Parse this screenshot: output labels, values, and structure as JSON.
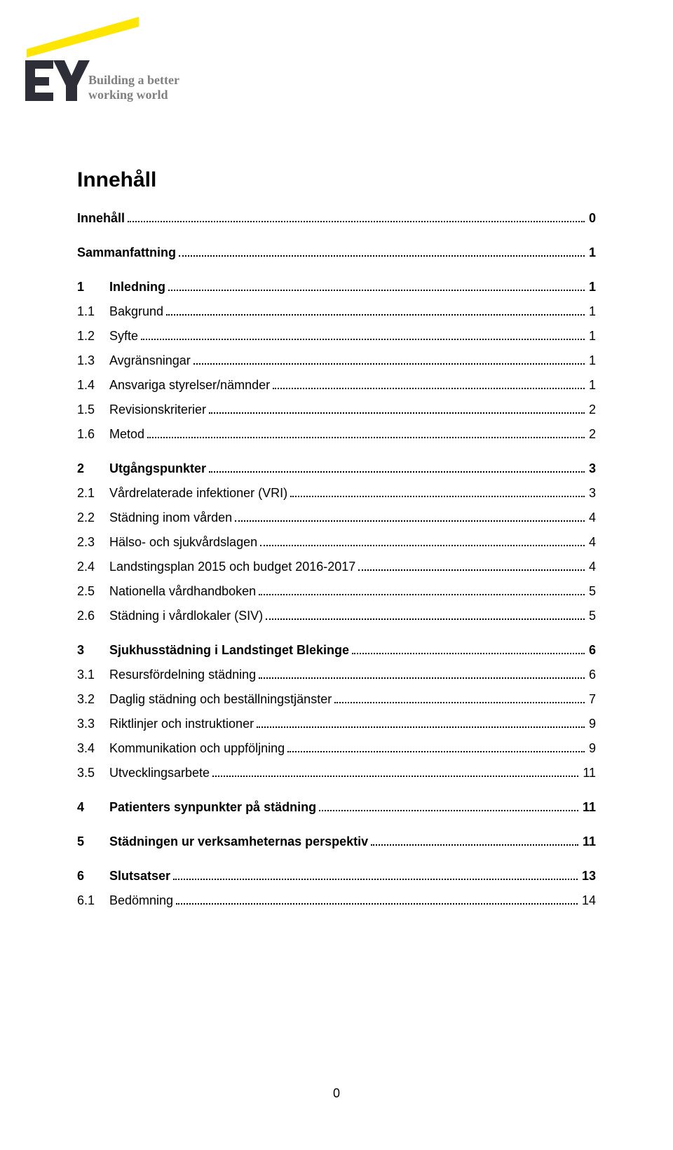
{
  "logo": {
    "brand": "EY",
    "tagline_line1": "Building a better",
    "tagline_line2": "working world",
    "yellow": "#ffe600",
    "dark": "#2e2e38",
    "gray": "#808080"
  },
  "title": "Innehåll",
  "footer_page": "0",
  "toc": [
    {
      "level": 0,
      "num": "",
      "label": "Innehåll",
      "page": "0",
      "gap_after": true
    },
    {
      "level": 0,
      "num": "",
      "label": "Sammanfattning",
      "page": "1",
      "gap_after": true
    },
    {
      "level": 1,
      "num": "1",
      "label": "Inledning",
      "page": "1",
      "gap_after": false
    },
    {
      "level": 2,
      "num": "1.1",
      "label": "Bakgrund",
      "page": " 1",
      "gap_after": false
    },
    {
      "level": 2,
      "num": "1.2",
      "label": "Syfte",
      "page": " 1",
      "gap_after": false
    },
    {
      "level": 2,
      "num": "1.3",
      "label": "Avgränsningar",
      "page": " 1",
      "gap_after": false
    },
    {
      "level": 2,
      "num": "1.4",
      "label": "Ansvariga styrelser/nämnder",
      "page": " 1",
      "gap_after": false
    },
    {
      "level": 2,
      "num": "1.5",
      "label": "Revisionskriterier",
      "page": " 2",
      "gap_after": false
    },
    {
      "level": 2,
      "num": "1.6",
      "label": "Metod",
      "page": " 2",
      "gap_after": true
    },
    {
      "level": 1,
      "num": "2",
      "label": "Utgångspunkter",
      "page": "3",
      "gap_after": false
    },
    {
      "level": 2,
      "num": "2.1",
      "label": "Vårdrelaterade infektioner (VRI)",
      "page": " 3",
      "gap_after": false
    },
    {
      "level": 2,
      "num": "2.2",
      "label": "Städning inom vården",
      "page": " 4",
      "gap_after": false
    },
    {
      "level": 2,
      "num": "2.3",
      "label": "Hälso- och sjukvårdslagen",
      "page": " 4",
      "gap_after": false
    },
    {
      "level": 2,
      "num": "2.4",
      "label": "Landstingsplan 2015 och budget 2016-2017",
      "page": " 4",
      "gap_after": false
    },
    {
      "level": 2,
      "num": "2.5",
      "label": "Nationella vårdhandboken",
      "page": " 5",
      "gap_after": false
    },
    {
      "level": 2,
      "num": "2.6",
      "label": "Städning i vårdlokaler (SIV)",
      "page": " 5",
      "gap_after": true
    },
    {
      "level": 1,
      "num": "3",
      "label": "Sjukhusstädning i Landstinget Blekinge",
      "page": "6",
      "gap_after": false
    },
    {
      "level": 2,
      "num": "3.1",
      "label": "Resursfördelning städning",
      "page": " 6",
      "gap_after": false
    },
    {
      "level": 2,
      "num": "3.2",
      "label": "Daglig städning och beställningstjänster",
      "page": " 7",
      "gap_after": false
    },
    {
      "level": 2,
      "num": "3.3",
      "label": "Riktlinjer och instruktioner",
      "page": " 9",
      "gap_after": false
    },
    {
      "level": 2,
      "num": "3.4",
      "label": "Kommunikation och uppföljning",
      "page": " 9",
      "gap_after": false
    },
    {
      "level": 2,
      "num": "3.5",
      "label": "Utvecklingsarbete",
      "page": "11",
      "gap_after": true
    },
    {
      "level": 1,
      "num": "4",
      "label": "Patienters synpunkter på städning",
      "page": "11",
      "gap_after": true
    },
    {
      "level": 1,
      "num": "5",
      "label": "Städningen ur verksamheternas perspektiv",
      "page": "11",
      "gap_after": true
    },
    {
      "level": 1,
      "num": "6",
      "label": "Slutsatser",
      "page": "13",
      "gap_after": false
    },
    {
      "level": 2,
      "num": "6.1",
      "label": "Bedömning",
      "page": "14",
      "gap_after": false
    }
  ]
}
